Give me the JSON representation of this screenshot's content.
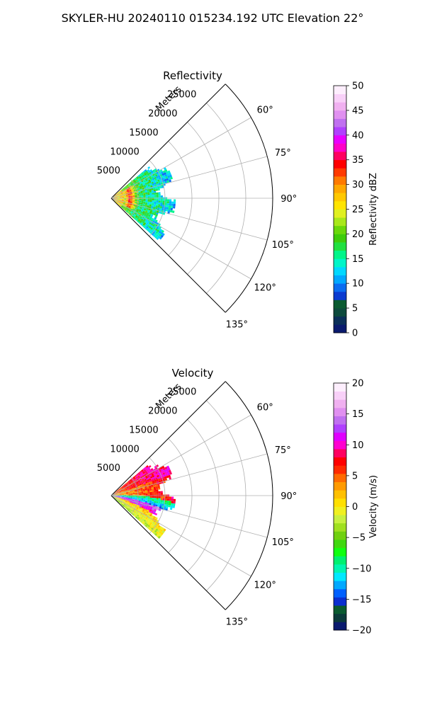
{
  "figure": {
    "suptitle": "SKYLER-HU  20240110  015234.192 UTC Elevation 22°"
  },
  "chart_data": [
    {
      "type": "heatmap",
      "title": "Reflectivity",
      "radial_axis_label": "Meters",
      "radial_ticks": [
        5000,
        10000,
        15000,
        20000,
        25000
      ],
      "radial_tick_labels": [
        "5000",
        "10000",
        "15000",
        "20000",
        "25000"
      ],
      "rlim": [
        0,
        30000
      ],
      "azimuth_range_deg": [
        45,
        135
      ],
      "azimuth_ticks_deg": [
        60,
        75,
        90,
        105,
        120,
        135
      ],
      "azimuth_tick_labels": [
        "60°",
        "75°",
        "90°",
        "105°",
        "120°",
        "135°"
      ],
      "grid": true,
      "colorbar": {
        "label": "Reflectivity dBZ",
        "range": [
          0,
          50
        ],
        "ticks": [
          0,
          5,
          10,
          15,
          20,
          25,
          30,
          35,
          40,
          45,
          50
        ],
        "tick_labels": [
          "0",
          "5",
          "10",
          "15",
          "20",
          "25",
          "30",
          "35",
          "40",
          "45",
          "50"
        ],
        "colors": [
          "#0a1a6e",
          "#0b2f58",
          "#0d4a3c",
          "#0a5a30",
          "#0b3bd0",
          "#0a6cf0",
          "#00a8ff",
          "#00d8ff",
          "#00f5c8",
          "#00f58a",
          "#20e040",
          "#3ecc0a",
          "#6ad80a",
          "#a8e81a",
          "#e0f020",
          "#ffe400",
          "#ffc800",
          "#ffa800",
          "#ff7a00",
          "#ff3a00",
          "#ff0000",
          "#ff0060",
          "#ff00c8",
          "#e800ff",
          "#b040ff",
          "#c070f0",
          "#e090f0",
          "#f0b0f0",
          "#f8d0f8",
          "#fdeefd"
        ]
      },
      "field_description": "reflectivity field restricted to ranges 0–12000 m and azimuths about 50°–132°",
      "range_extent_m": [
        0,
        12000
      ],
      "azimuth_extent_deg": [
        50,
        132
      ]
    },
    {
      "type": "heatmap",
      "title": "Velocity",
      "radial_axis_label": "Meters",
      "radial_ticks": [
        5000,
        10000,
        15000,
        20000,
        25000
      ],
      "radial_tick_labels": [
        "5000",
        "10000",
        "15000",
        "20000",
        "25000"
      ],
      "rlim": [
        0,
        30000
      ],
      "azimuth_range_deg": [
        45,
        135
      ],
      "azimuth_ticks_deg": [
        60,
        75,
        90,
        105,
        120,
        135
      ],
      "azimuth_tick_labels": [
        "60°",
        "75°",
        "90°",
        "105°",
        "120°",
        "135°"
      ],
      "grid": true,
      "colorbar": {
        "label": "Velocity (m/s)",
        "range": [
          -20,
          20
        ],
        "ticks": [
          -20,
          -15,
          -10,
          -5,
          0,
          5,
          10,
          15,
          20
        ],
        "tick_labels": [
          "−20",
          "−15",
          "−10",
          "−5",
          "0",
          "5",
          "10",
          "15",
          "20"
        ],
        "colors": [
          "#0a1a6e",
          "#0b3a3a",
          "#0a5a30",
          "#0b2fd0",
          "#0060ff",
          "#00a8ff",
          "#00e8ff",
          "#00f5b0",
          "#00f070",
          "#10ff10",
          "#40d810",
          "#70d010",
          "#a0e020",
          "#c8f040",
          "#f0f020",
          "#ffe000",
          "#ffc000",
          "#ff9a00",
          "#ff6a00",
          "#ff2a00",
          "#ff0000",
          "#ff0060",
          "#ff00d0",
          "#e000ff",
          "#b040ff",
          "#c070f0",
          "#e090f0",
          "#f0b0f0",
          "#f8d0f8",
          "#fdeefd"
        ]
      },
      "field_description": "velocity field restricted to ranges 0–12000 m and azimuths about 50°–132°",
      "range_extent_m": [
        0,
        12000
      ],
      "azimuth_extent_deg": [
        50,
        132
      ]
    }
  ]
}
